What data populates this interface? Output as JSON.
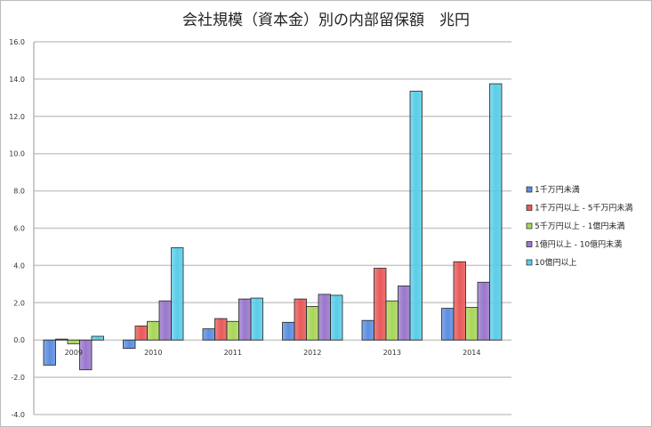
{
  "chart_data": {
    "type": "bar",
    "title": "会社規模（資本金）別の内部留保額　兆円",
    "categories": [
      "2009",
      "2010",
      "2011",
      "2012",
      "2013",
      "2014"
    ],
    "series": [
      {
        "name": "1千万円未満",
        "color": "#5b8fe0",
        "values": [
          -1.35,
          -0.45,
          0.6,
          0.95,
          1.05,
          1.7
        ]
      },
      {
        "name": "1千万円以上 - 5千万円未満",
        "color": "#e85a5a",
        "values": [
          0.05,
          0.75,
          1.15,
          2.2,
          3.85,
          4.2
        ]
      },
      {
        "name": "5千万円以上 - 1億円未満",
        "color": "#a9d65a",
        "values": [
          -0.2,
          1.0,
          1.0,
          1.8,
          2.1,
          1.75
        ]
      },
      {
        "name": "1億円以上 - 10億円未満",
        "color": "#9a78cc",
        "values": [
          -1.6,
          2.1,
          2.2,
          2.45,
          2.9,
          3.1
        ]
      },
      {
        "name": "10億円以上",
        "color": "#5bcde8",
        "values": [
          0.2,
          4.95,
          2.25,
          2.4,
          13.35,
          13.75
        ]
      }
    ],
    "ylim": [
      -4,
      16
    ],
    "yticks": [
      "-4.0",
      "-2.0",
      "0.0",
      "2.0",
      "4.0",
      "6.0",
      "8.0",
      "10.0",
      "12.0",
      "14.0",
      "16.0"
    ],
    "grid": true,
    "legend": "right"
  }
}
